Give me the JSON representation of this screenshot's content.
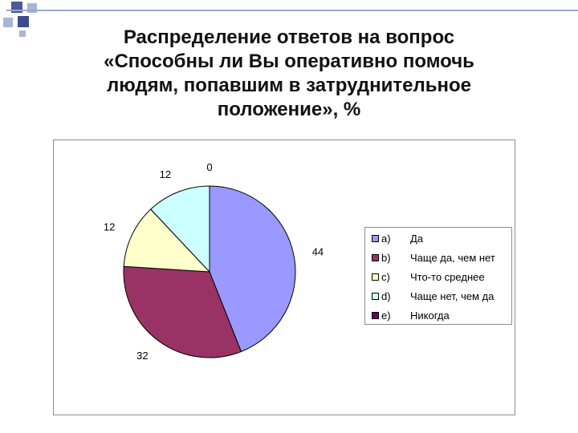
{
  "title_lines": [
    "Распределение ответов на вопрос",
    "«Способны ли Вы оперативно помочь",
    "людям, попавшим в затруднительное",
    "положение», %"
  ],
  "chart_data": {
    "type": "pie",
    "title": "",
    "slices": [
      {
        "letter": "a)",
        "label": "Да",
        "value": 44,
        "color": "#9999ff"
      },
      {
        "letter": "b)",
        "label": "Чаще да, чем нет",
        "value": 32,
        "color": "#993366"
      },
      {
        "letter": "c)",
        "label": "Что-то среднее",
        "value": 12,
        "color": "#ffffcc"
      },
      {
        "letter": "d)",
        "label": "Чаще нет, чем да",
        "value": 12,
        "color": "#ccffff"
      },
      {
        "letter": "e)",
        "label": "Никогда",
        "value": 0,
        "color": "#660066"
      }
    ],
    "legend_position": "right"
  }
}
